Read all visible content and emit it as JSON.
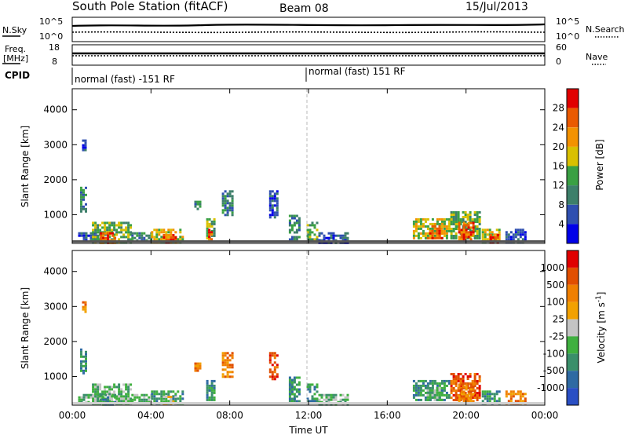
{
  "header": {
    "title": "South Pole Station (fitACF)",
    "beam": "Beam 08",
    "date": "15/Jul/2013"
  },
  "panels": {
    "nsky_label": "N.Sky",
    "nsearch_label": "N.Search",
    "nsky_ticks": [
      "10^5",
      "10^0"
    ],
    "nsearch_ticks": [
      "10^5",
      "10^0"
    ],
    "freq_label_1": "Freq.",
    "freq_label_2": "[MHz]",
    "freq_ticks": [
      "18",
      "8"
    ],
    "nave_label": "Nave",
    "nave_ticks": [
      "60",
      "0"
    ],
    "cpid_label": "CPID",
    "cpid_left": "normal (fast) -151 RF",
    "cpid_right": "normal (fast) 151 RF"
  },
  "chart_data": [
    {
      "type": "heatmap",
      "name": "power",
      "ylabel": "Slant Range [km]",
      "y_ticks": [
        1000,
        2000,
        3000,
        4000
      ],
      "ylim": [
        180,
        4600
      ],
      "xlim": [
        0,
        24
      ],
      "x_ticks": [
        "00:00",
        "04:00",
        "08:00",
        "12:00",
        "16:00",
        "20:00",
        "00:00"
      ],
      "colorbar_label": "Power [dB]",
      "colorbar_ticks": [
        4,
        8,
        12,
        16,
        20,
        24,
        28
      ],
      "colorbar_colors": [
        "#0000e8",
        "#2f4fb0",
        "#3d7f6a",
        "#3aa043",
        "#d9c000",
        "#f39200",
        "#ea5a00",
        "#e10000"
      ],
      "clusters": [
        {
          "t0": 0.4,
          "t1": 0.7,
          "r0": 1100,
          "r1": 1800,
          "level": 2
        },
        {
          "t0": 0.5,
          "t1": 0.65,
          "r0": 2850,
          "r1": 3150,
          "level": 1
        },
        {
          "t0": 0.3,
          "t1": 1.3,
          "r0": 250,
          "r1": 500,
          "level": 1
        },
        {
          "t0": 1.0,
          "t1": 3.0,
          "r0": 200,
          "r1": 800,
          "level": 3
        },
        {
          "t0": 1.4,
          "t1": 2.2,
          "r0": 200,
          "r1": 500,
          "level": 6
        },
        {
          "t0": 3.0,
          "t1": 4.0,
          "r0": 250,
          "r1": 500,
          "level": 2
        },
        {
          "t0": 4.0,
          "t1": 5.6,
          "r0": 200,
          "r1": 600,
          "level": 4
        },
        {
          "t0": 4.6,
          "t1": 5.3,
          "r0": 230,
          "r1": 450,
          "level": 6
        },
        {
          "t0": 6.2,
          "t1": 6.5,
          "r0": 1150,
          "r1": 1400,
          "level": 2
        },
        {
          "t0": 6.8,
          "t1": 7.2,
          "r0": 300,
          "r1": 900,
          "level": 3
        },
        {
          "t0": 6.9,
          "t1": 7.1,
          "r0": 300,
          "r1": 600,
          "level": 6
        },
        {
          "t0": 7.6,
          "t1": 8.1,
          "r0": 1000,
          "r1": 1700,
          "level": 2
        },
        {
          "t0": 10.0,
          "t1": 10.4,
          "r0": 900,
          "r1": 1700,
          "level": 1
        },
        {
          "t0": 11.0,
          "t1": 11.5,
          "r0": 300,
          "r1": 1000,
          "level": 2
        },
        {
          "t0": 11.9,
          "t1": 12.4,
          "r0": 300,
          "r1": 800,
          "level": 3
        },
        {
          "t0": 12.5,
          "t1": 14.0,
          "r0": 200,
          "r1": 500,
          "level": 1
        },
        {
          "t0": 17.3,
          "t1": 19.2,
          "r0": 300,
          "r1": 900,
          "level": 4
        },
        {
          "t0": 18.0,
          "t1": 18.8,
          "r0": 300,
          "r1": 700,
          "level": 6
        },
        {
          "t0": 19.2,
          "t1": 20.7,
          "r0": 300,
          "r1": 1100,
          "level": 3
        },
        {
          "t0": 19.6,
          "t1": 20.4,
          "r0": 300,
          "r1": 800,
          "level": 6
        },
        {
          "t0": 20.8,
          "t1": 21.7,
          "r0": 200,
          "r1": 600,
          "level": 4
        },
        {
          "t0": 21.2,
          "t1": 21.6,
          "r0": 200,
          "r1": 450,
          "level": 7
        },
        {
          "t0": 22.0,
          "t1": 23.0,
          "r0": 250,
          "r1": 600,
          "level": 1
        }
      ]
    },
    {
      "type": "heatmap",
      "name": "velocity",
      "ylabel": "Slant Range [km]",
      "y_ticks": [
        1000,
        2000,
        3000,
        4000
      ],
      "ylim": [
        180,
        4600
      ],
      "xlim": [
        0,
        24
      ],
      "x_ticks": [
        "00:00",
        "04:00",
        "08:00",
        "12:00",
        "16:00",
        "20:00",
        "00:00"
      ],
      "xlabel": "Time UT",
      "colorbar_label": "Velocity [m s^-1]",
      "colorbar_ticks": [
        "1000",
        "500",
        "100",
        "25",
        "-25",
        "-100",
        "-500",
        "-1000"
      ],
      "colorbar_colors": [
        "#2a4fc4",
        "#2f6aa3",
        "#3a8f6a",
        "#3fb03f",
        "#c4c4c4",
        "#f2a100",
        "#f07f00",
        "#e14f00",
        "#e00000"
      ],
      "clusters": [
        {
          "t0": 0.4,
          "t1": 0.7,
          "r0": 1100,
          "r1": 1800,
          "level": 2
        },
        {
          "t0": 0.5,
          "t1": 0.65,
          "r0": 2850,
          "r1": 3150,
          "level": 6
        },
        {
          "t0": 0.3,
          "t1": 1.3,
          "r0": 250,
          "r1": 500,
          "level": 3
        },
        {
          "t0": 1.0,
          "t1": 3.0,
          "r0": 200,
          "r1": 800,
          "level": 3
        },
        {
          "t0": 1.4,
          "t1": 2.2,
          "r0": 200,
          "r1": 500,
          "level": 2
        },
        {
          "t0": 3.0,
          "t1": 4.0,
          "r0": 250,
          "r1": 500,
          "level": 3
        },
        {
          "t0": 4.0,
          "t1": 5.6,
          "r0": 200,
          "r1": 600,
          "level": 2
        },
        {
          "t0": 4.6,
          "t1": 5.3,
          "r0": 230,
          "r1": 450,
          "level": 4
        },
        {
          "t0": 6.2,
          "t1": 6.5,
          "r0": 1150,
          "r1": 1400,
          "level": 6
        },
        {
          "t0": 6.8,
          "t1": 7.2,
          "r0": 300,
          "r1": 900,
          "level": 2
        },
        {
          "t0": 7.6,
          "t1": 8.1,
          "r0": 1000,
          "r1": 1700,
          "level": 6
        },
        {
          "t0": 10.0,
          "t1": 10.4,
          "r0": 900,
          "r1": 1700,
          "level": 7
        },
        {
          "t0": 11.0,
          "t1": 11.5,
          "r0": 300,
          "r1": 1000,
          "level": 2
        },
        {
          "t0": 11.9,
          "t1": 12.4,
          "r0": 300,
          "r1": 800,
          "level": 2
        },
        {
          "t0": 12.5,
          "t1": 14.0,
          "r0": 200,
          "r1": 500,
          "level": 3
        },
        {
          "t0": 17.3,
          "t1": 19.2,
          "r0": 300,
          "r1": 900,
          "level": 2
        },
        {
          "t0": 18.0,
          "t1": 18.8,
          "r0": 300,
          "r1": 700,
          "level": 3
        },
        {
          "t0": 19.2,
          "t1": 20.7,
          "r0": 300,
          "r1": 1100,
          "level": 7
        },
        {
          "t0": 19.6,
          "t1": 20.4,
          "r0": 300,
          "r1": 800,
          "level": 6
        },
        {
          "t0": 20.8,
          "t1": 21.7,
          "r0": 200,
          "r1": 600,
          "level": 2
        },
        {
          "t0": 22.0,
          "t1": 23.0,
          "r0": 250,
          "r1": 600,
          "level": 6
        }
      ]
    }
  ]
}
